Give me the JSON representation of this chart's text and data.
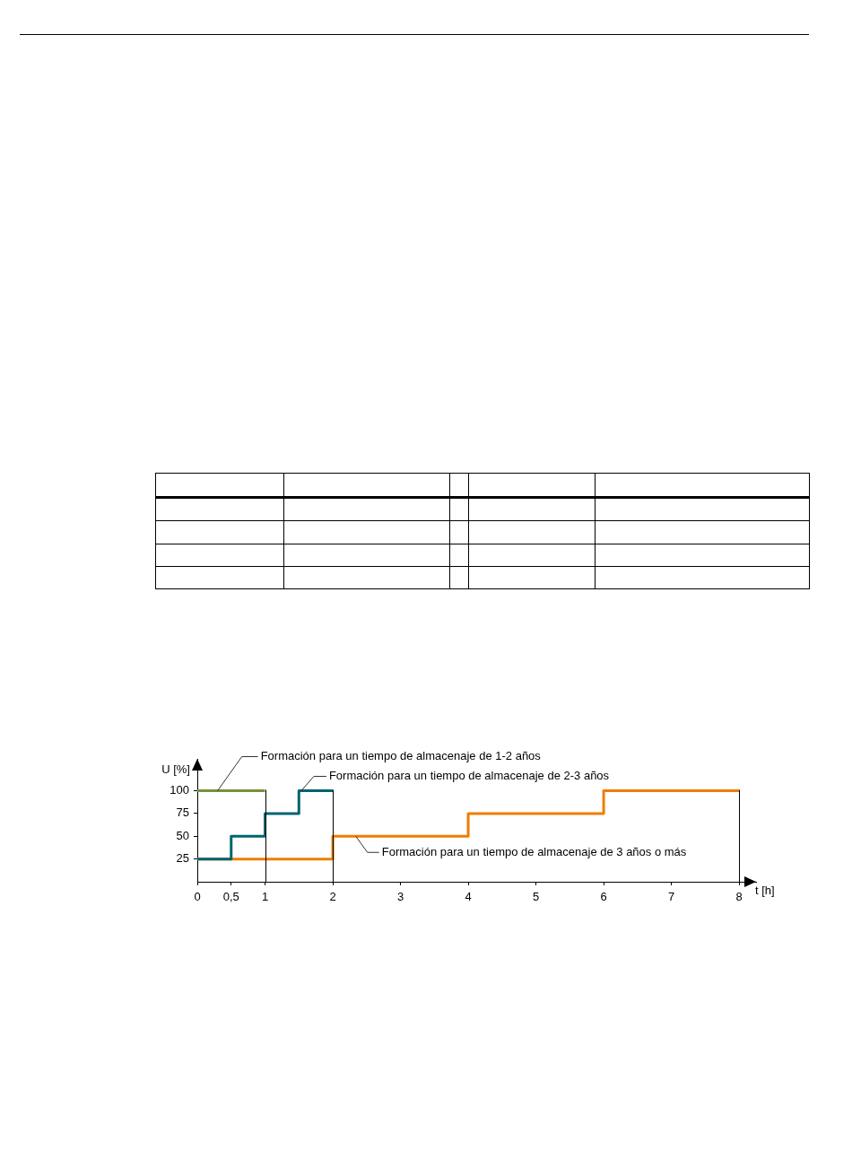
{
  "chart_data": {
    "type": "step",
    "xlabel": "t [h]",
    "ylabel": "U [%]",
    "xlim": [
      0,
      8.25
    ],
    "ylim": [
      0,
      135
    ],
    "xticks": [
      0,
      {
        "value": 0.5,
        "label": "0,5"
      },
      1,
      2,
      3,
      4,
      5,
      6,
      7,
      8
    ],
    "yticks": [
      25,
      50,
      75,
      100
    ],
    "series": [
      {
        "name": "Formación para un tiempo de almacenaje de 1-2 años",
        "color": "#76923c",
        "x": [
          0,
          1
        ],
        "values": [
          100,
          100
        ]
      },
      {
        "name": "Formación para un tiempo de almacenaje de 2-3 años",
        "color": "#00646e",
        "x": [
          0,
          0.5,
          1,
          1.5,
          2
        ],
        "values": [
          25,
          50,
          75,
          100,
          100
        ]
      },
      {
        "name": "Formación para un tiempo de almacenaje de 3 años o más",
        "color": "#f07d00",
        "x": [
          0,
          2,
          4,
          6,
          8
        ],
        "values": [
          25,
          50,
          75,
          100,
          100
        ]
      }
    ],
    "ref_lines": [
      {
        "axis": "x",
        "value": 1,
        "color": "#000000"
      },
      {
        "axis": "x",
        "value": 2,
        "color": "#000000"
      },
      {
        "axis": "x",
        "value": 8,
        "color": "#000000"
      }
    ]
  }
}
